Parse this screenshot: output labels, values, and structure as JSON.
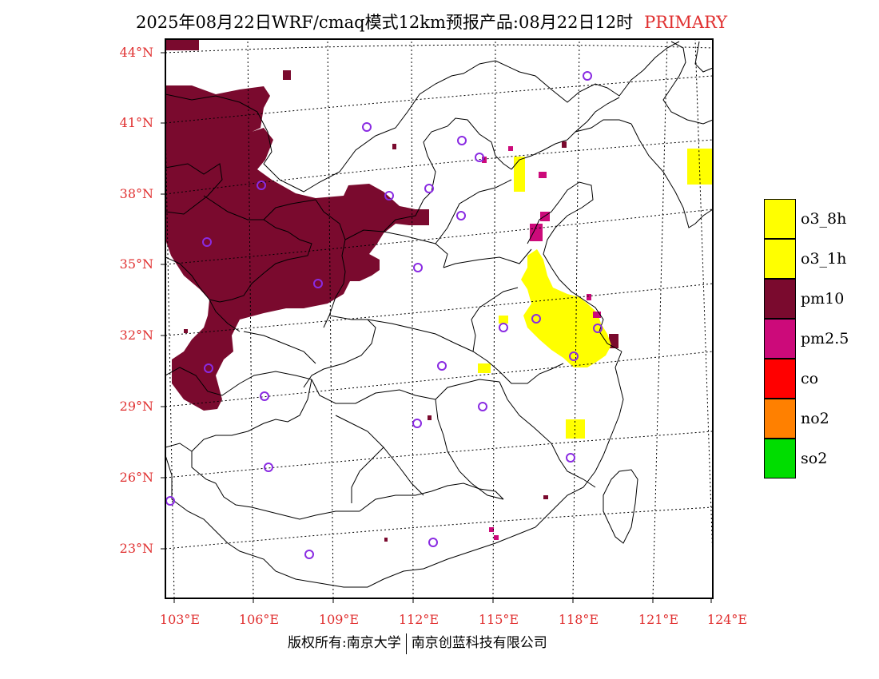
{
  "title": {
    "main": "2025年08月22日WRF/cmaq模式12km预报产品:08月22日12时",
    "tag": "PRIMARY"
  },
  "axes": {
    "latitude_labels": [
      "44°N",
      "41°N",
      "38°N",
      "35°N",
      "32°N",
      "29°N",
      "26°N",
      "23°N"
    ],
    "longitude_labels": [
      "103°E",
      "106°E",
      "109°E",
      "112°E",
      "115°E",
      "118°E",
      "121°E",
      "124°E"
    ]
  },
  "legend": {
    "items": [
      {
        "label": "o3_8h",
        "color": "#ffff00"
      },
      {
        "label": "o3_1h",
        "color": "#ffff00"
      },
      {
        "label": "pm10",
        "color": "#7a0a2e"
      },
      {
        "label": "pm2.5",
        "color": "#cc0a7a"
      },
      {
        "label": "co",
        "color": "#ff0000"
      },
      {
        "label": "no2",
        "color": "#ff8000"
      },
      {
        "label": "so2",
        "color": "#00dd00"
      }
    ]
  },
  "copyright": {
    "left": "版权所有:南京大学",
    "right": "南京创蓝科技有限公司"
  },
  "colors": {
    "label_red": "#e03030",
    "station_marker": "#8a2be2",
    "pm10": "#7a0a2e",
    "pm25": "#cc0a7a",
    "o3": "#ffff00"
  },
  "stations_count": 26
}
